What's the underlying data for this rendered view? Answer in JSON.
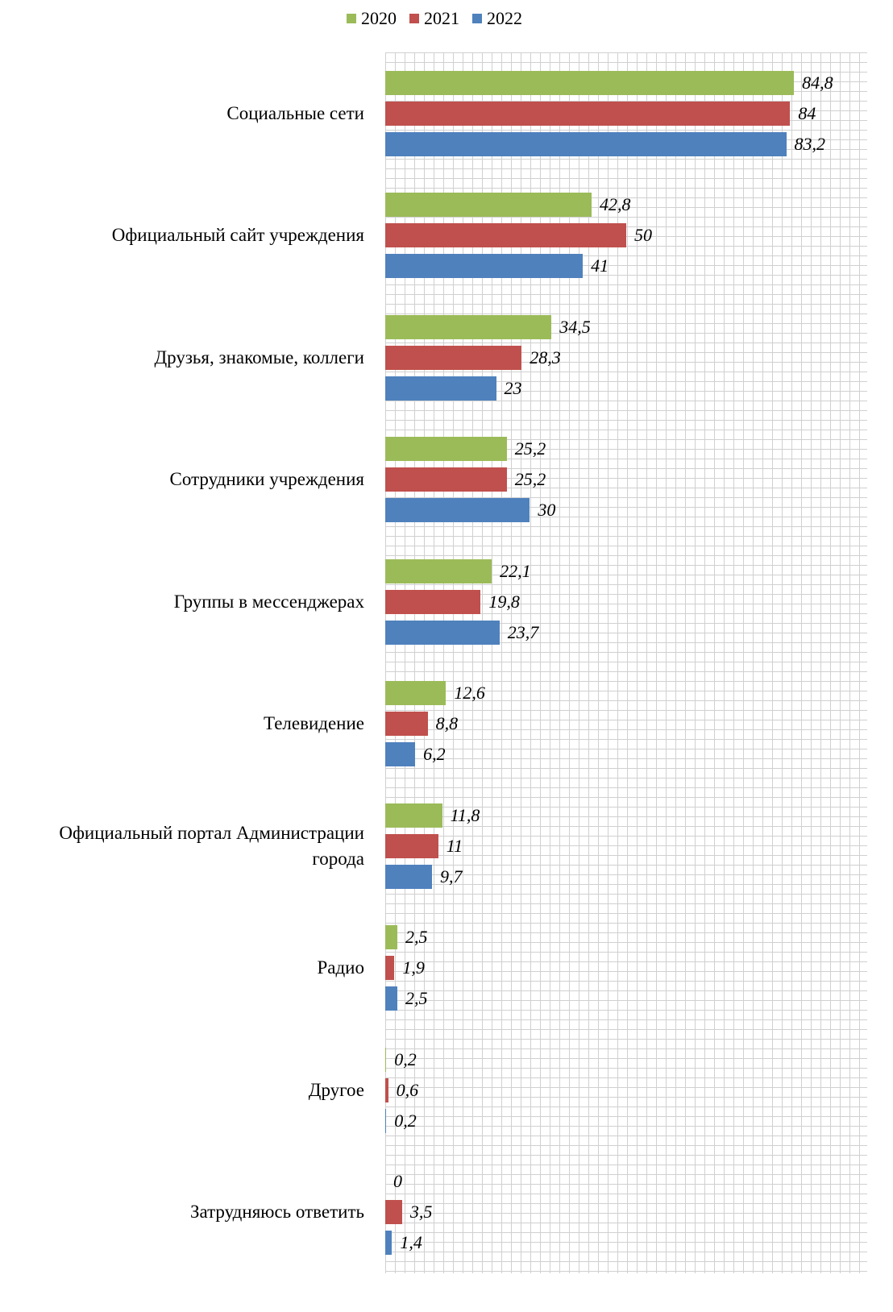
{
  "chart_data": {
    "type": "barh",
    "categories": [
      "Социальные сети",
      "Официальный сайт учреждения",
      "Друзья, знакомые, коллеги",
      "Сотрудники учреждения",
      "Группы в мессенджерах",
      "Телевидение",
      "Официальный портал Администрации города",
      "Радио",
      "Другое",
      "Затрудняюсь ответить"
    ],
    "series": [
      {
        "name": "2020",
        "color": "#9bbb59",
        "values": [
          84.8,
          42.8,
          34.5,
          25.2,
          22.1,
          12.6,
          11.8,
          2.5,
          0.2,
          0
        ],
        "value_labels": [
          "84,8",
          "42,8",
          "34,5",
          "25,2",
          "22,1",
          "12,6",
          "11,8",
          "2,5",
          "0,2",
          "0"
        ]
      },
      {
        "name": "2021",
        "color": "#c0504d",
        "values": [
          84,
          50,
          28.3,
          25.2,
          19.8,
          8.8,
          11,
          1.9,
          0.6,
          3.5
        ],
        "value_labels": [
          "84",
          "50",
          "28,3",
          "25,2",
          "19,8",
          "8,8",
          "11",
          "1,9",
          "0,6",
          "3,5"
        ]
      },
      {
        "name": "2022",
        "color": "#4f81bd",
        "values": [
          83.2,
          41,
          23,
          30,
          23.7,
          6.2,
          9.7,
          2.5,
          0.2,
          1.4
        ],
        "value_labels": [
          "83,2",
          "41",
          "23",
          "30",
          "23,7",
          "6,2",
          "9,7",
          "2,5",
          "0,2",
          "1,4"
        ]
      }
    ],
    "xlim": [
      0,
      100
    ],
    "grid": true,
    "legend": "top"
  }
}
